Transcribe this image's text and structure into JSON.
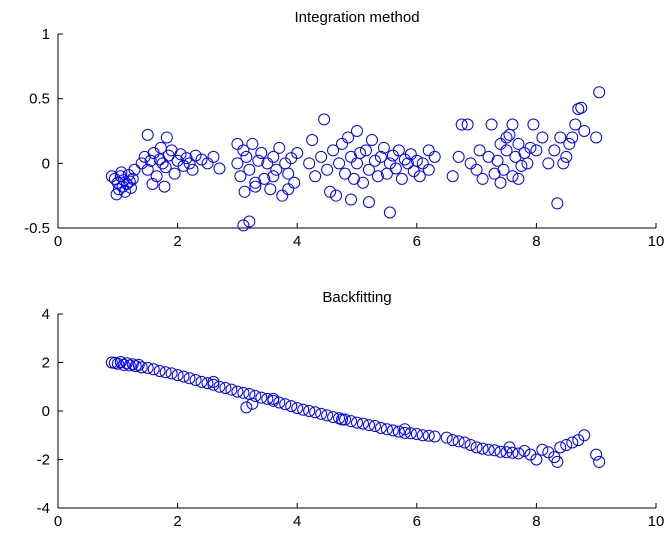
{
  "chart_data": [
    {
      "type": "scatter",
      "title": "Integration method",
      "xlabel": "",
      "ylabel": "",
      "xlim": [
        0,
        10
      ],
      "ylim": [
        -0.5,
        1
      ],
      "x_ticks": [
        "0",
        "2",
        "4",
        "6",
        "8",
        "10"
      ],
      "y_ticks": [
        "-0.5",
        "0",
        "0.5",
        "1"
      ],
      "grid": false,
      "marker": "open-circle",
      "color": "#0000ff",
      "points": [
        [
          0.9,
          -0.1
        ],
        [
          0.95,
          -0.12
        ],
        [
          1.0,
          -0.15
        ],
        [
          1.02,
          -0.2
        ],
        [
          1.05,
          -0.1
        ],
        [
          1.08,
          -0.18
        ],
        [
          1.1,
          -0.13
        ],
        [
          1.12,
          -0.22
        ],
        [
          1.15,
          -0.16
        ],
        [
          1.18,
          -0.09
        ],
        [
          1.2,
          -0.14
        ],
        [
          1.22,
          -0.19
        ],
        [
          1.25,
          -0.12
        ],
        [
          1.28,
          -0.05
        ],
        [
          0.98,
          -0.24
        ],
        [
          1.06,
          -0.07
        ],
        [
          1.4,
          0.0
        ],
        [
          1.45,
          0.05
        ],
        [
          1.5,
          -0.05
        ],
        [
          1.5,
          0.22
        ],
        [
          1.55,
          0.02
        ],
        [
          1.6,
          0.08
        ],
        [
          1.65,
          -0.1
        ],
        [
          1.7,
          0.03
        ],
        [
          1.72,
          0.12
        ],
        [
          1.75,
          0.0
        ],
        [
          1.8,
          -0.03
        ],
        [
          1.82,
          0.2
        ],
        [
          1.85,
          0.06
        ],
        [
          1.9,
          0.1
        ],
        [
          1.95,
          -0.08
        ],
        [
          2.0,
          0.02
        ],
        [
          2.05,
          0.07
        ],
        [
          2.1,
          -0.02
        ],
        [
          2.15,
          0.04
        ],
        [
          2.2,
          0.0
        ],
        [
          2.25,
          -0.05
        ],
        [
          2.3,
          0.06
        ],
        [
          2.4,
          0.03
        ],
        [
          2.5,
          0.0
        ],
        [
          2.6,
          0.05
        ],
        [
          2.7,
          -0.04
        ],
        [
          1.58,
          -0.16
        ],
        [
          1.78,
          -0.18
        ],
        [
          3.0,
          0.0
        ],
        [
          3.05,
          -0.1
        ],
        [
          3.1,
          0.1
        ],
        [
          3.12,
          -0.22
        ],
        [
          3.15,
          0.05
        ],
        [
          3.2,
          -0.05
        ],
        [
          3.25,
          0.15
        ],
        [
          3.3,
          -0.15
        ],
        [
          3.35,
          0.02
        ],
        [
          3.4,
          0.08
        ],
        [
          3.45,
          -0.12
        ],
        [
          3.5,
          0.0
        ],
        [
          3.55,
          -0.2
        ],
        [
          3.6,
          0.05
        ],
        [
          3.65,
          -0.05
        ],
        [
          3.7,
          0.12
        ],
        [
          3.75,
          -0.25
        ],
        [
          3.8,
          0.0
        ],
        [
          3.85,
          -0.08
        ],
        [
          3.9,
          0.04
        ],
        [
          3.95,
          -0.15
        ],
        [
          4.0,
          0.08
        ],
        [
          3.1,
          -0.48
        ],
        [
          3.2,
          -0.45
        ],
        [
          3.3,
          -0.18
        ],
        [
          3.6,
          -0.1
        ],
        [
          3.85,
          -0.2
        ],
        [
          3.0,
          0.15
        ],
        [
          4.2,
          0.0
        ],
        [
          4.3,
          -0.1
        ],
        [
          4.4,
          0.05
        ],
        [
          4.45,
          0.34
        ],
        [
          4.5,
          -0.05
        ],
        [
          4.6,
          0.1
        ],
        [
          4.65,
          -0.25
        ],
        [
          4.7,
          0.0
        ],
        [
          4.75,
          0.15
        ],
        [
          4.8,
          -0.08
        ],
        [
          4.85,
          0.2
        ],
        [
          4.9,
          0.05
        ],
        [
          4.95,
          -0.12
        ],
        [
          5.0,
          0.0
        ],
        [
          5.05,
          0.08
        ],
        [
          5.1,
          -0.15
        ],
        [
          5.15,
          0.1
        ],
        [
          5.2,
          -0.05
        ],
        [
          5.25,
          0.18
        ],
        [
          5.3,
          0.02
        ],
        [
          5.35,
          -0.1
        ],
        [
          5.4,
          0.05
        ],
        [
          5.45,
          0.12
        ],
        [
          5.5,
          -0.08
        ],
        [
          5.55,
          0.0
        ],
        [
          5.6,
          0.06
        ],
        [
          5.65,
          -0.04
        ],
        [
          5.7,
          0.1
        ],
        [
          5.75,
          -0.12
        ],
        [
          5.8,
          0.03
        ],
        [
          5.85,
          0.0
        ],
        [
          5.9,
          0.07
        ],
        [
          5.95,
          -0.06
        ],
        [
          6.0,
          0.02
        ],
        [
          6.1,
          0.0
        ],
        [
          6.2,
          -0.05
        ],
        [
          6.3,
          0.05
        ],
        [
          4.9,
          -0.28
        ],
        [
          5.2,
          -0.3
        ],
        [
          5.55,
          -0.38
        ],
        [
          4.55,
          -0.22
        ],
        [
          4.25,
          0.18
        ],
        [
          5.0,
          0.25
        ],
        [
          6.2,
          0.1
        ],
        [
          6.05,
          -0.1
        ],
        [
          6.6,
          -0.1
        ],
        [
          6.7,
          0.05
        ],
        [
          6.75,
          0.3
        ],
        [
          6.85,
          0.3
        ],
        [
          6.9,
          0.0
        ],
        [
          7.0,
          -0.05
        ],
        [
          7.05,
          0.1
        ],
        [
          7.1,
          -0.12
        ],
        [
          7.2,
          0.05
        ],
        [
          7.25,
          0.3
        ],
        [
          7.3,
          -0.08
        ],
        [
          7.35,
          0.02
        ],
        [
          7.4,
          0.15
        ],
        [
          7.45,
          -0.05
        ],
        [
          7.5,
          0.1
        ],
        [
          7.55,
          0.22
        ],
        [
          7.6,
          -0.1
        ],
        [
          7.65,
          0.05
        ],
        [
          7.7,
          0.15
        ],
        [
          7.75,
          -0.02
        ],
        [
          7.8,
          0.08
        ],
        [
          7.85,
          0.0
        ],
        [
          7.9,
          0.12
        ],
        [
          7.6,
          0.3
        ],
        [
          7.5,
          0.2
        ],
        [
          7.4,
          -0.15
        ],
        [
          7.7,
          -0.12
        ],
        [
          8.0,
          0.1
        ],
        [
          8.1,
          0.2
        ],
        [
          8.2,
          0.0
        ],
        [
          8.3,
          0.1
        ],
        [
          8.35,
          -0.31
        ],
        [
          8.4,
          0.2
        ],
        [
          8.5,
          0.05
        ],
        [
          8.55,
          0.15
        ],
        [
          8.6,
          0.2
        ],
        [
          8.65,
          0.3
        ],
        [
          8.7,
          0.42
        ],
        [
          8.75,
          0.43
        ],
        [
          8.8,
          0.25
        ],
        [
          9.0,
          0.2
        ],
        [
          9.05,
          0.55
        ],
        [
          8.45,
          0.0
        ],
        [
          7.95,
          0.3
        ]
      ]
    },
    {
      "type": "scatter",
      "title": "Backfitting",
      "xlabel": "",
      "ylabel": "",
      "xlim": [
        0,
        10
      ],
      "ylim": [
        -4,
        4
      ],
      "x_ticks": [
        "0",
        "2",
        "4",
        "6",
        "8",
        "10"
      ],
      "y_ticks": [
        "-4",
        "-2",
        "0",
        "2",
        "4"
      ],
      "grid": false,
      "marker": "open-circle",
      "color": "#0000ff",
      "points": [
        [
          0.9,
          2.0
        ],
        [
          0.95,
          1.98
        ],
        [
          1.0,
          1.95
        ],
        [
          1.05,
          2.02
        ],
        [
          1.1,
          1.9
        ],
        [
          1.15,
          1.97
        ],
        [
          1.2,
          1.88
        ],
        [
          1.25,
          1.93
        ],
        [
          1.3,
          1.85
        ],
        [
          1.35,
          1.9
        ],
        [
          1.4,
          1.8
        ],
        [
          1.5,
          1.78
        ],
        [
          1.6,
          1.72
        ],
        [
          1.7,
          1.65
        ],
        [
          1.8,
          1.6
        ],
        [
          1.9,
          1.55
        ],
        [
          2.0,
          1.48
        ],
        [
          2.1,
          1.42
        ],
        [
          2.2,
          1.35
        ],
        [
          2.3,
          1.28
        ],
        [
          2.4,
          1.2
        ],
        [
          2.5,
          1.15
        ],
        [
          2.6,
          1.08
        ],
        [
          2.7,
          1.0
        ],
        [
          2.8,
          0.95
        ],
        [
          2.9,
          0.88
        ],
        [
          3.0,
          0.8
        ],
        [
          3.1,
          0.75
        ],
        [
          3.15,
          0.15
        ],
        [
          3.25,
          0.3
        ],
        [
          3.2,
          0.7
        ],
        [
          3.3,
          0.62
        ],
        [
          3.4,
          0.55
        ],
        [
          3.5,
          0.5
        ],
        [
          3.6,
          0.42
        ],
        [
          3.7,
          0.35
        ],
        [
          3.8,
          0.28
        ],
        [
          3.9,
          0.2
        ],
        [
          4.0,
          0.12
        ],
        [
          4.1,
          0.05
        ],
        [
          4.2,
          0.0
        ],
        [
          4.3,
          -0.05
        ],
        [
          4.4,
          -0.12
        ],
        [
          4.5,
          -0.18
        ],
        [
          4.6,
          -0.25
        ],
        [
          4.7,
          -0.3
        ],
        [
          4.8,
          -0.35
        ],
        [
          4.9,
          -0.42
        ],
        [
          5.0,
          -0.48
        ],
        [
          5.1,
          -0.52
        ],
        [
          5.2,
          -0.58
        ],
        [
          5.3,
          -0.62
        ],
        [
          5.4,
          -0.7
        ],
        [
          5.5,
          -0.75
        ],
        [
          5.6,
          -0.8
        ],
        [
          5.7,
          -0.85
        ],
        [
          5.8,
          -0.9
        ],
        [
          5.9,
          -0.92
        ],
        [
          6.0,
          -0.95
        ],
        [
          6.1,
          -1.0
        ],
        [
          6.2,
          -1.02
        ],
        [
          6.3,
          -1.05
        ],
        [
          6.5,
          -1.1
        ],
        [
          6.6,
          -1.2
        ],
        [
          6.7,
          -1.25
        ],
        [
          6.8,
          -1.3
        ],
        [
          6.9,
          -1.4
        ],
        [
          7.0,
          -1.5
        ],
        [
          7.1,
          -1.55
        ],
        [
          7.2,
          -1.6
        ],
        [
          7.3,
          -1.62
        ],
        [
          7.4,
          -1.68
        ],
        [
          7.5,
          -1.7
        ],
        [
          7.6,
          -1.72
        ],
        [
          7.7,
          -1.75
        ],
        [
          7.8,
          -1.65
        ],
        [
          7.9,
          -1.8
        ],
        [
          8.0,
          -2.0
        ],
        [
          8.1,
          -1.6
        ],
        [
          8.2,
          -1.7
        ],
        [
          8.3,
          -1.9
        ],
        [
          8.35,
          -2.1
        ],
        [
          8.4,
          -1.5
        ],
        [
          8.5,
          -1.4
        ],
        [
          8.6,
          -1.3
        ],
        [
          8.7,
          -1.2
        ],
        [
          8.8,
          -1.0
        ],
        [
          9.0,
          -1.8
        ],
        [
          9.05,
          -2.1
        ],
        [
          2.6,
          1.2
        ],
        [
          3.6,
          0.5
        ],
        [
          4.75,
          -0.35
        ],
        [
          5.8,
          -0.75
        ],
        [
          7.55,
          -1.5
        ]
      ]
    }
  ]
}
